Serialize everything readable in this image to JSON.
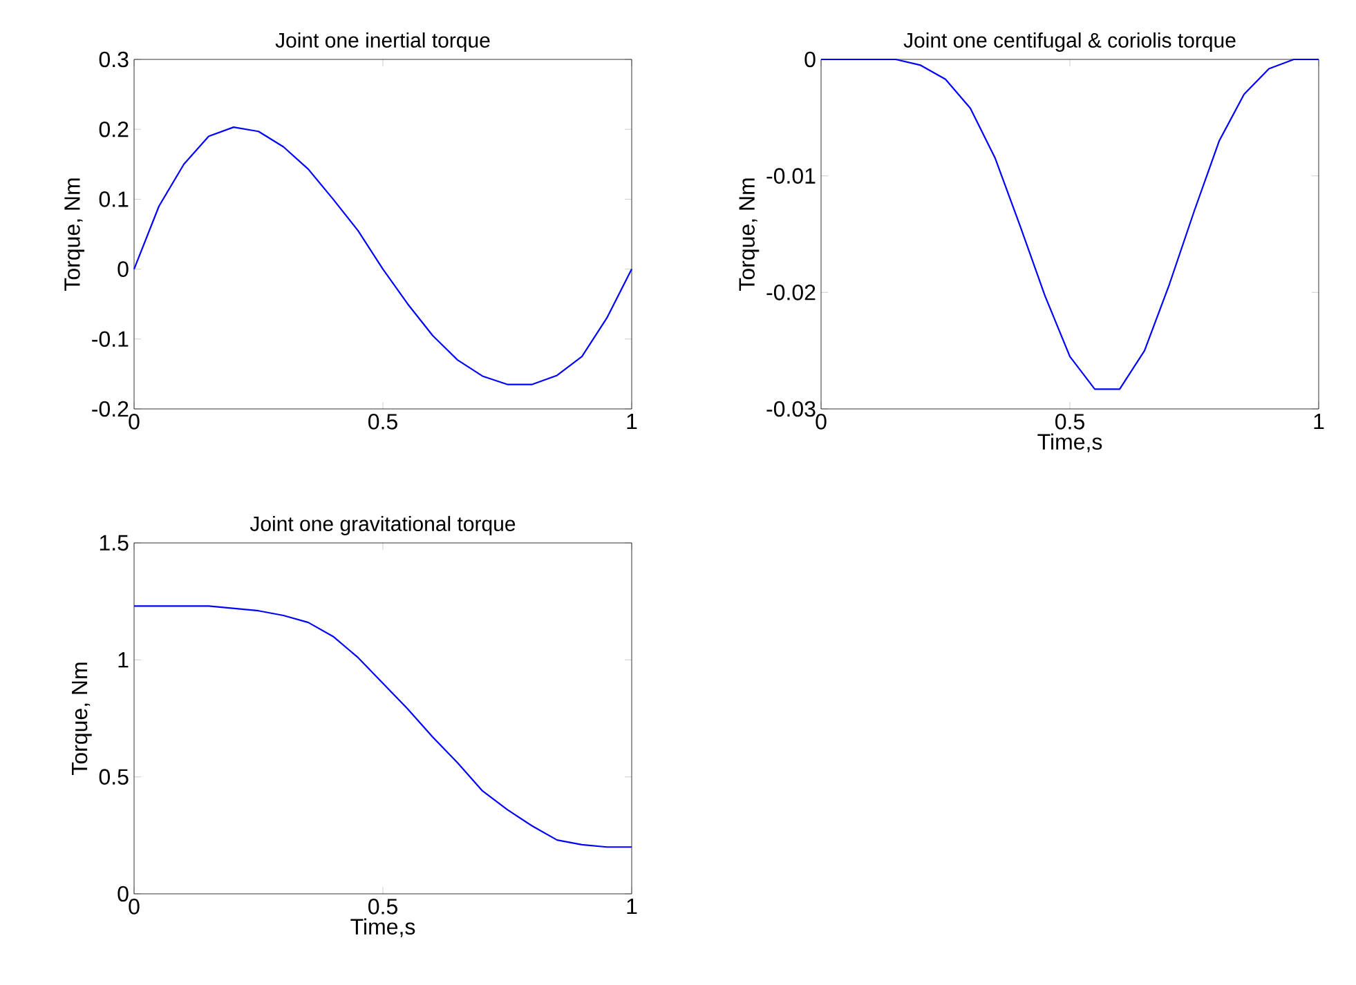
{
  "chart_data": [
    {
      "type": "line",
      "title": "Joint one inertial torque",
      "ylabel": "Torque, Nm",
      "x": [
        0,
        0.05,
        0.1,
        0.15,
        0.2,
        0.25,
        0.3,
        0.35,
        0.4,
        0.45,
        0.5,
        0.55,
        0.6,
        0.65,
        0.7,
        0.75,
        0.8,
        0.85,
        0.9,
        0.95,
        1
      ],
      "series": [
        {
          "color": "#0000ff",
          "values": [
            0,
            0.09,
            0.15,
            0.19,
            0.203,
            0.197,
            0.175,
            0.143,
            0.1,
            0.055,
            0.0,
            -0.05,
            -0.095,
            -0.13,
            -0.153,
            -0.165,
            -0.165,
            -0.152,
            -0.125,
            -0.07,
            0
          ]
        }
      ],
      "xlim": [
        0,
        1
      ],
      "ylim": [
        -0.2,
        0.3
      ],
      "xticks": [
        0,
        0.5,
        1
      ],
      "yticks": [
        -0.2,
        -0.1,
        0,
        0.1,
        0.2,
        0.3
      ]
    },
    {
      "type": "line",
      "title": "Joint one centifugal & coriolis torque",
      "xlabel": "Time,s",
      "ylabel": "Torque, Nm",
      "x": [
        0,
        0.05,
        0.1,
        0.15,
        0.2,
        0.25,
        0.3,
        0.35,
        0.4,
        0.45,
        0.5,
        0.55,
        0.6,
        0.65,
        0.7,
        0.75,
        0.8,
        0.85,
        0.9,
        0.95,
        1
      ],
      "series": [
        {
          "color": "#0000ff",
          "values": [
            0,
            0,
            0,
            0,
            -0.0005,
            -0.0017,
            -0.0042,
            -0.0085,
            -0.0143,
            -0.0203,
            -0.0255,
            -0.0283,
            -0.0283,
            -0.025,
            -0.0193,
            -0.013,
            -0.007,
            -0.003,
            -0.0008,
            0,
            0
          ]
        }
      ],
      "xlim": [
        0,
        1
      ],
      "ylim": [
        -0.03,
        0
      ],
      "xticks": [
        0,
        0.5,
        1
      ],
      "yticks": [
        -0.03,
        -0.02,
        -0.01,
        0
      ]
    },
    {
      "type": "line",
      "title": "Joint one gravitational torque",
      "xlabel": "Time,s",
      "ylabel": "Torque, Nm",
      "x": [
        0,
        0.05,
        0.1,
        0.15,
        0.2,
        0.25,
        0.3,
        0.35,
        0.4,
        0.45,
        0.5,
        0.55,
        0.6,
        0.65,
        0.7,
        0.75,
        0.8,
        0.85,
        0.9,
        0.95,
        1
      ],
      "series": [
        {
          "color": "#0000ff",
          "values": [
            1.23,
            1.23,
            1.23,
            1.23,
            1.22,
            1.21,
            1.19,
            1.16,
            1.1,
            1.01,
            0.9,
            0.79,
            0.67,
            0.56,
            0.44,
            0.36,
            0.29,
            0.23,
            0.21,
            0.2,
            0.2
          ]
        }
      ],
      "xlim": [
        0,
        1
      ],
      "ylim": [
        0,
        1.5
      ],
      "xticks": [
        0,
        0.5,
        1
      ],
      "yticks": [
        0,
        0.5,
        1,
        1.5
      ]
    }
  ]
}
